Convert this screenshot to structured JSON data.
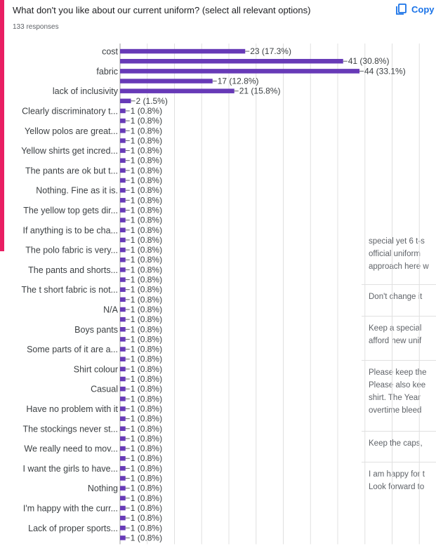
{
  "header": {
    "question": "What don't you like about our current uniform? (select all relevant options)",
    "responses": "133 responses",
    "copy_label": "Copy",
    "copy_icon": "copy-icon"
  },
  "colors": {
    "bar": "#673ab7",
    "accent": "#e91e63",
    "grid": "#e0e0e0",
    "copy": "#1a73e8"
  },
  "background_text": [
    [
      "special yet 6 t-s",
      "official uniform",
      "approach here w"
    ],
    [
      "Don't change it"
    ],
    [
      "Keep a special",
      "afford new unif"
    ],
    [
      "Please keep the",
      "Please also kee",
      "shirt. The Year",
      "overtime bleed"
    ],
    [
      "Keep the caps,"
    ],
    [
      "I am happy for t",
      "Look forward to"
    ]
  ],
  "chart_data": {
    "type": "bar",
    "orientation": "horizontal",
    "categories": [
      "cost",
      "",
      "fabric",
      "",
      "lack of inclusivity",
      "",
      "Clearly discriminatory t...",
      "",
      "Yellow polos are great...",
      "",
      "Yellow shirts get incred...",
      "",
      "The pants are ok but t...",
      "",
      "Nothing. Fine as it is.",
      "",
      "The yellow top gets dir...",
      "",
      "If anything is to be cha...",
      "",
      "The polo fabric is very...",
      "",
      "The pants and shorts...",
      "",
      "The t short fabric is not...",
      "",
      "N/A",
      "",
      "Boys pants",
      "",
      "Some parts of it are a...",
      "",
      "Shirt colour",
      "",
      "Casual",
      "",
      "Have no problem with it",
      "",
      "The stockings never st...",
      "",
      "We really need to mov...",
      "",
      "I want the girls to have...",
      "",
      "Nothing",
      "",
      "I'm happy with the curr...",
      "",
      "Lack of proper sports...",
      ""
    ],
    "values": [
      23,
      41,
      44,
      17,
      21,
      2,
      1,
      1,
      1,
      1,
      1,
      1,
      1,
      1,
      1,
      1,
      1,
      1,
      1,
      1,
      1,
      1,
      1,
      1,
      1,
      1,
      1,
      1,
      1,
      1,
      1,
      1,
      1,
      1,
      1,
      1,
      1,
      1,
      1,
      1,
      1,
      1,
      1,
      1,
      1,
      1,
      1,
      1,
      1,
      1
    ],
    "data_labels": [
      "23 (17.3%)",
      "41 (30.8%)",
      "44 (33.1%)",
      "17 (12.8%)",
      "21 (15.8%)",
      "2 (1.5%)",
      "1 (0.8%)",
      "1 (0.8%)",
      "1 (0.8%)",
      "1 (0.8%)",
      "1 (0.8%)",
      "1 (0.8%)",
      "1 (0.8%)",
      "1 (0.8%)",
      "1 (0.8%)",
      "1 (0.8%)",
      "1 (0.8%)",
      "1 (0.8%)",
      "1 (0.8%)",
      "1 (0.8%)",
      "1 (0.8%)",
      "1 (0.8%)",
      "1 (0.8%)",
      "1 (0.8%)",
      "1 (0.8%)",
      "1 (0.8%)",
      "1 (0.8%)",
      "1 (0.8%)",
      "1 (0.8%)",
      "1 (0.8%)",
      "1 (0.8%)",
      "1 (0.8%)",
      "1 (0.8%)",
      "1 (0.8%)",
      "1 (0.8%)",
      "1 (0.8%)",
      "1 (0.8%)",
      "1 (0.8%)",
      "1 (0.8%)",
      "1 (0.8%)",
      "1 (0.8%)",
      "1 (0.8%)",
      "1 (0.8%)",
      "1 (0.8%)",
      "1 (0.8%)",
      "1 (0.8%)",
      "1 (0.8%)",
      "1 (0.8%)",
      "1 (0.8%)",
      "1 (0.8%)"
    ],
    "xlim": [
      0,
      60
    ],
    "grid": true,
    "legend": "none"
  }
}
